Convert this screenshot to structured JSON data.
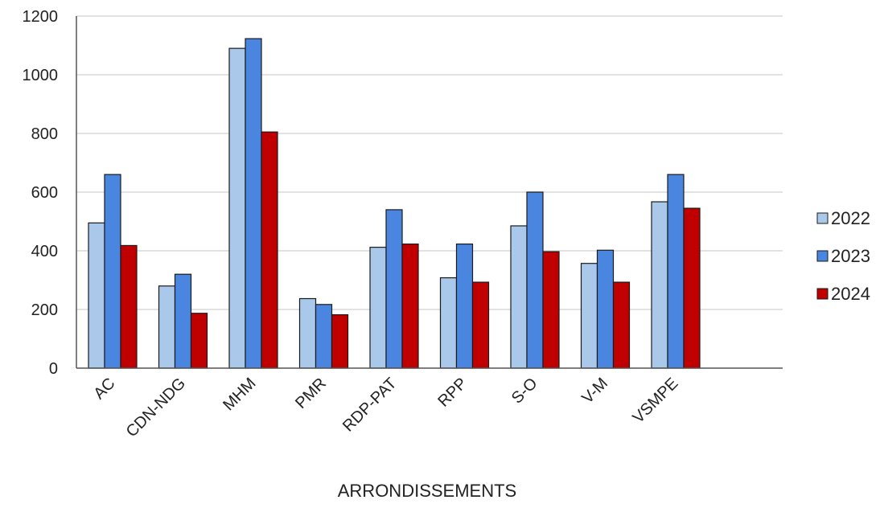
{
  "chart_data": {
    "type": "bar",
    "title": "",
    "xlabel": "ARRONDISSEMENTS",
    "ylabel": "",
    "ylim": [
      0,
      1200
    ],
    "yticks": [
      0,
      200,
      400,
      600,
      800,
      1000,
      1200
    ],
    "grid": true,
    "legend_position": "right",
    "categories": [
      "AC",
      "CDN-NDG",
      "MHM",
      "PMR",
      "RDP-PAT",
      "RPP",
      "S-O",
      "V-M",
      "VSMPE"
    ],
    "series": [
      {
        "name": "2022",
        "color": "#a9c8ea",
        "values": [
          495,
          280,
          1090,
          237,
          412,
          308,
          485,
          357,
          567
        ]
      },
      {
        "name": "2023",
        "color": "#4a86e0",
        "values": [
          660,
          320,
          1123,
          217,
          540,
          423,
          600,
          402,
          660
        ]
      },
      {
        "name": "2024",
        "color": "#c00000",
        "values": [
          418,
          187,
          805,
          182,
          423,
          293,
          397,
          293,
          545
        ]
      }
    ]
  }
}
